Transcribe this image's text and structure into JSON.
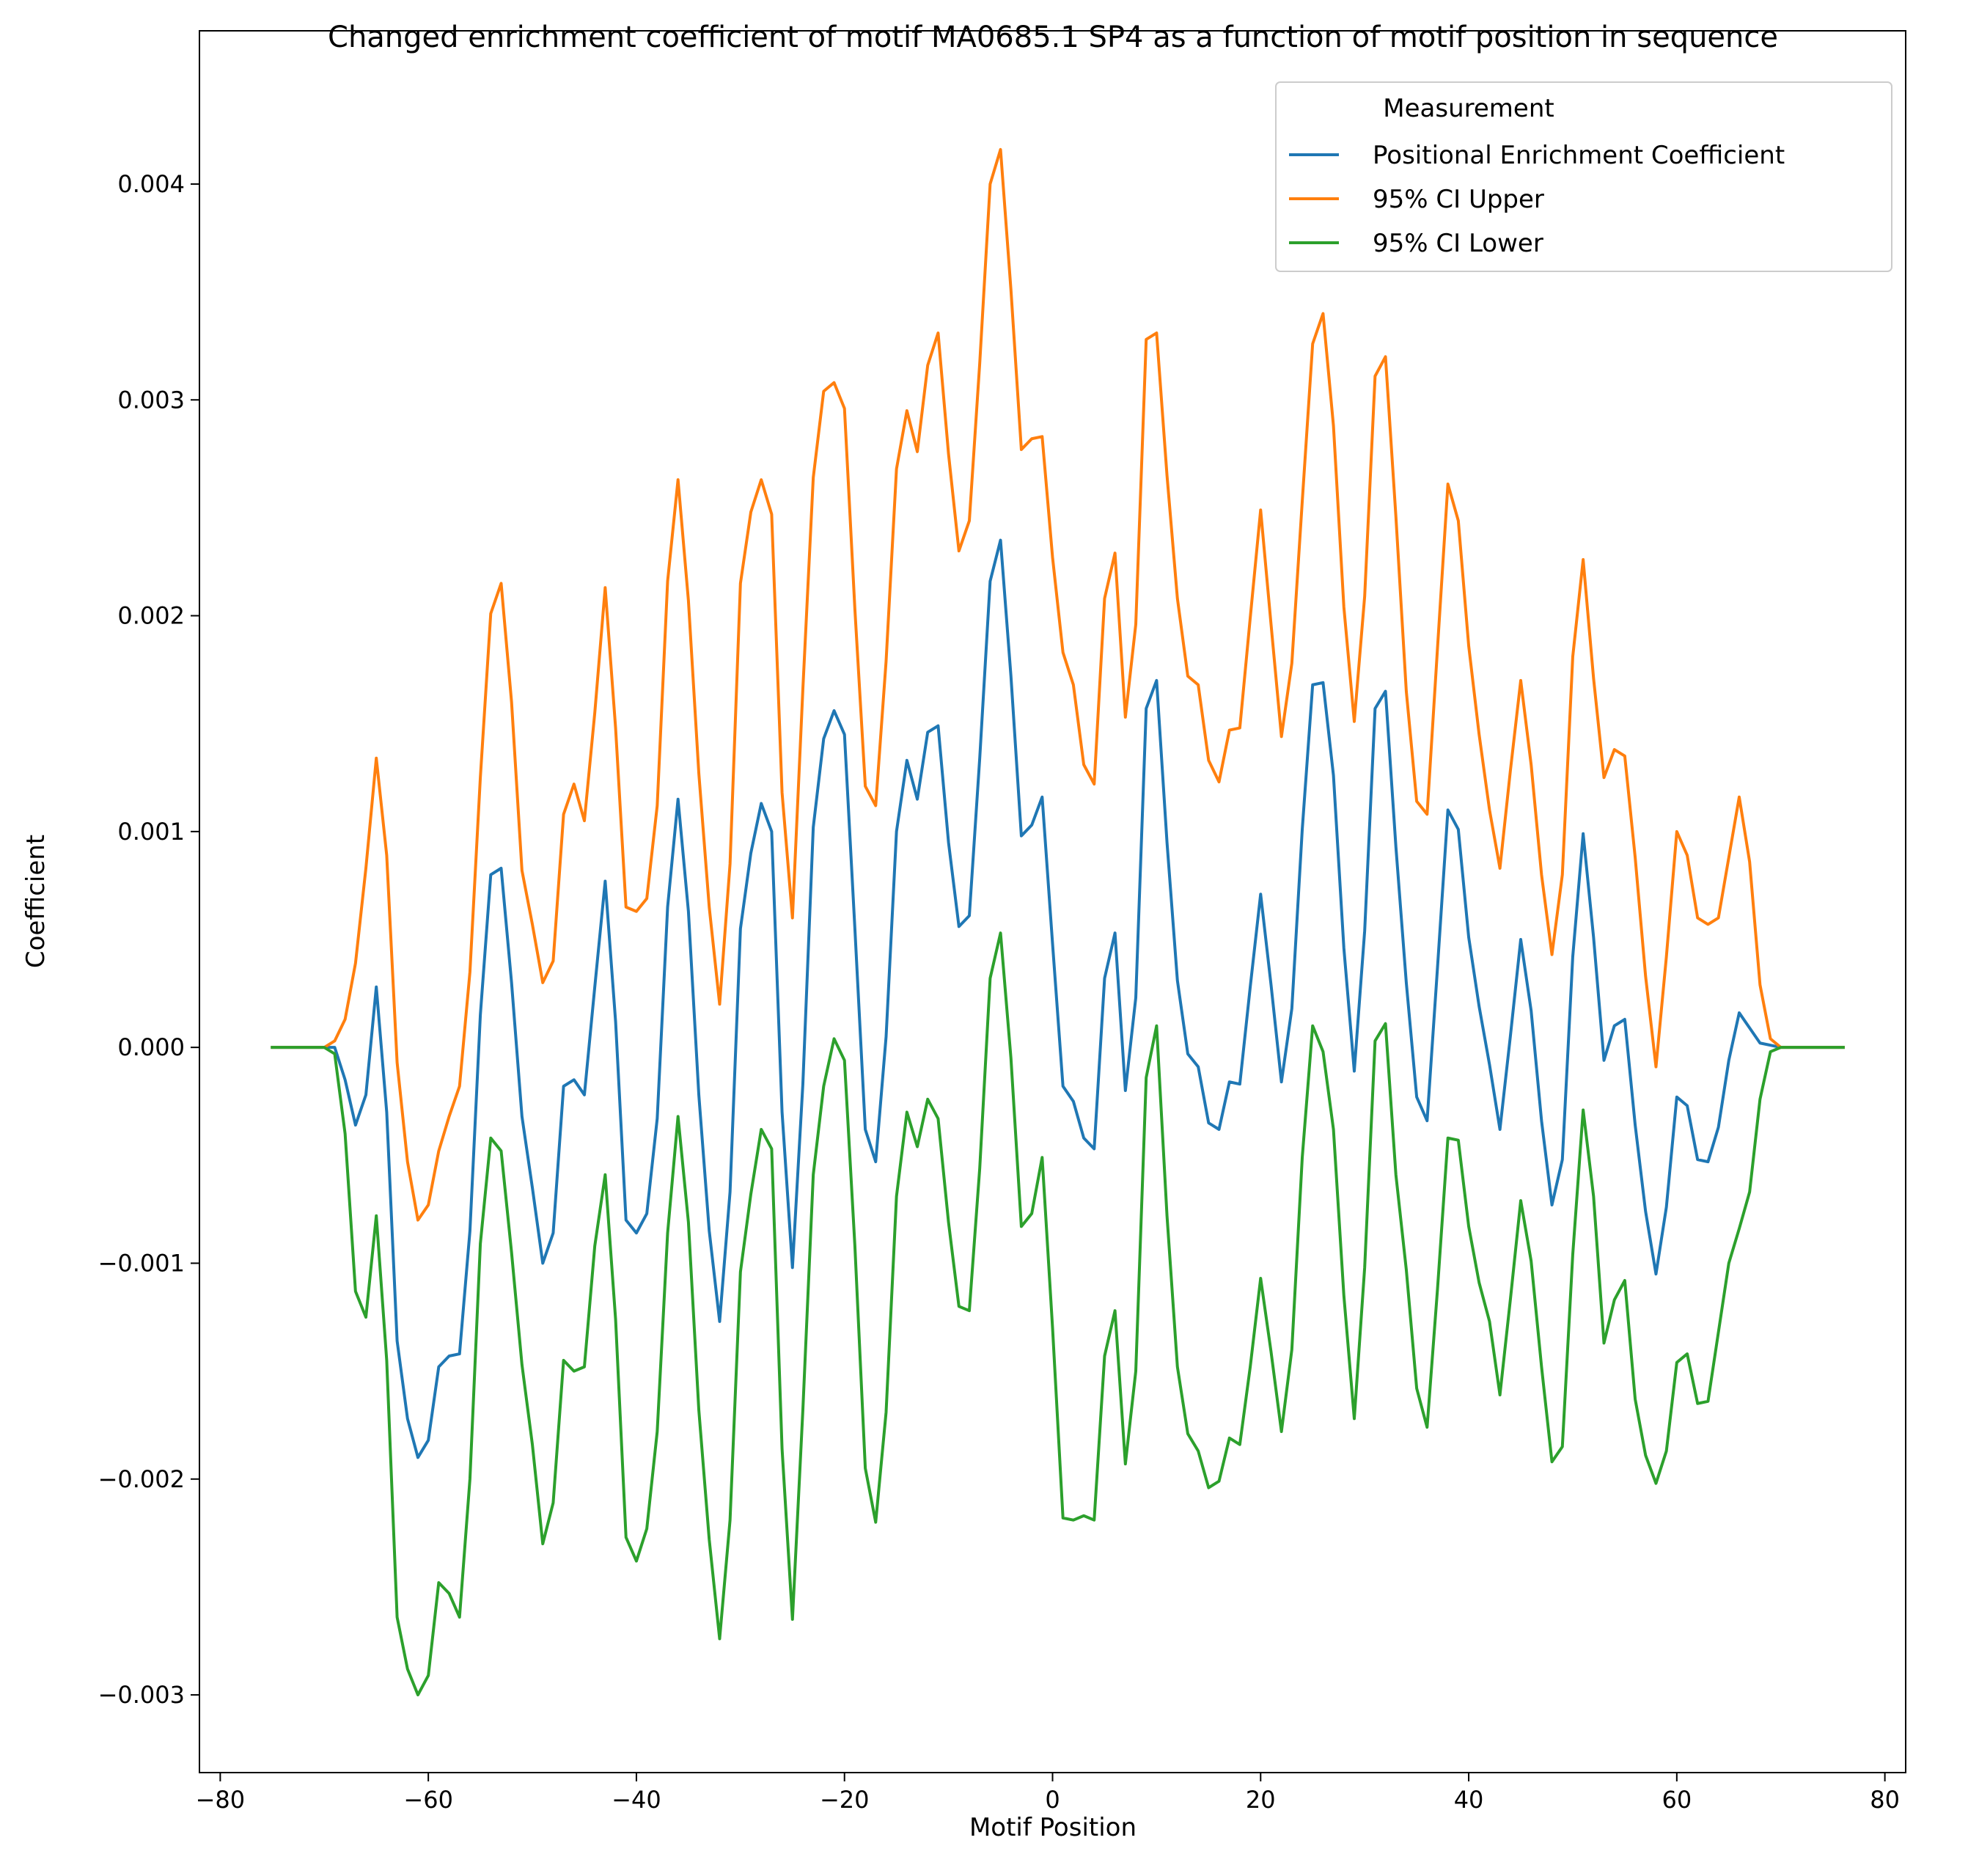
{
  "chart_data": {
    "type": "line",
    "title": "Changed enrichment coefficient of motif MA0685.1 SP4 as a function of motif position in sequence",
    "xlabel": "Motif Position",
    "ylabel": "Coefficient",
    "xlim": [
      -82,
      82
    ],
    "ylim": [
      -0.00336,
      0.00471
    ],
    "x_ticks": [
      -80,
      -60,
      -40,
      -20,
      0,
      20,
      40,
      60,
      80
    ],
    "x_tick_labels": [
      "−80",
      "−60",
      "−40",
      "−20",
      "0",
      "20",
      "40",
      "60",
      "80"
    ],
    "y_ticks": [
      -0.003,
      -0.002,
      -0.001,
      0,
      0.001,
      0.002,
      0.003,
      0.004
    ],
    "y_tick_labels": [
      "−0.003",
      "−0.002",
      "−0.001",
      "0.000",
      "0.001",
      "0.002",
      "0.003",
      "0.004"
    ],
    "grid": false,
    "legend": {
      "title": "Measurement",
      "position": "top-right"
    },
    "x_start": -75,
    "series": [
      {
        "name": "Positional Enrichment Coefficient",
        "color": "#1f77b4",
        "values": [
          0,
          0,
          0,
          0,
          0,
          0,
          0,
          -0.00015,
          -0.00036,
          -0.00022,
          0.00028,
          -0.0003,
          -0.00136,
          -0.00172,
          -0.0019,
          -0.00182,
          -0.00148,
          -0.00143,
          -0.00142,
          -0.00085,
          0.00015,
          0.0008,
          0.00083,
          0.0003,
          -0.00032,
          -0.00065,
          -0.001,
          -0.00086,
          -0.00018,
          -0.00015,
          -0.00022,
          0.00028,
          0.00077,
          0.00012,
          -0.0008,
          -0.00086,
          -0.00077,
          -0.00033,
          0.00065,
          0.00115,
          0.00063,
          -0.00022,
          -0.00085,
          -0.00127,
          -0.00067,
          0.00055,
          0.0009,
          0.00113,
          0.001,
          -0.0003,
          -0.00102,
          -0.00017,
          0.00102,
          0.00143,
          0.00156,
          0.00145,
          0.00055,
          -0.00038,
          -0.00053,
          5e-05,
          0.001,
          0.00133,
          0.00115,
          0.00146,
          0.00149,
          0.00095,
          0.00056,
          0.00061,
          0.00134,
          0.00216,
          0.00235,
          0.00172,
          0.00098,
          0.00103,
          0.00116,
          0.00048,
          -0.00018,
          -0.00025,
          -0.00042,
          -0.00047,
          0.00032,
          0.00053,
          -0.0002,
          0.00023,
          0.00157,
          0.0017,
          0.00095,
          0.00031,
          -3e-05,
          -9e-05,
          -0.00035,
          -0.00038,
          -0.00016,
          -0.00017,
          0.00028,
          0.00071,
          0.00029,
          -0.00016,
          0.00018,
          0.00101,
          0.00168,
          0.00169,
          0.00126,
          0.00046,
          -0.00011,
          0.00054,
          0.00157,
          0.00165,
          0.00093,
          0.0003,
          -0.00023,
          -0.00034,
          0.00037,
          0.0011,
          0.00101,
          0.00051,
          0.00019,
          -8e-05,
          -0.00038,
          5e-05,
          0.0005,
          0.00017,
          -0.00034,
          -0.00073,
          -0.00052,
          0.00042,
          0.00099,
          0.00051,
          -6e-05,
          0.0001,
          0.00013,
          -0.00036,
          -0.00076,
          -0.00105,
          -0.00074,
          -0.00023,
          -0.00027,
          -0.00052,
          -0.00053,
          -0.00037,
          -6e-05,
          0.00016,
          9e-05,
          2e-05,
          1e-05,
          0,
          0,
          0,
          0,
          0,
          0,
          0
        ]
      },
      {
        "name": "95% CI Upper",
        "color": "#ff7f0e",
        "values": [
          0,
          0,
          0,
          0,
          0,
          0,
          3e-05,
          0.00013,
          0.00039,
          0.00083,
          0.00134,
          0.00089,
          -7e-05,
          -0.00053,
          -0.0008,
          -0.00073,
          -0.00048,
          -0.00032,
          -0.00018,
          0.00035,
          0.00125,
          0.00201,
          0.00215,
          0.0016,
          0.00082,
          0.00057,
          0.0003,
          0.0004,
          0.00108,
          0.00122,
          0.00105,
          0.00155,
          0.00213,
          0.00148,
          0.00065,
          0.00063,
          0.00069,
          0.00112,
          0.00216,
          0.00263,
          0.00207,
          0.00127,
          0.00065,
          0.0002,
          0.00085,
          0.00215,
          0.00248,
          0.00263,
          0.00247,
          0.00118,
          0.0006,
          0.00166,
          0.00264,
          0.00304,
          0.00308,
          0.00296,
          0.00203,
          0.00121,
          0.00112,
          0.00179,
          0.00268,
          0.00295,
          0.00276,
          0.00316,
          0.00331,
          0.00275,
          0.0023,
          0.00244,
          0.00317,
          0.004,
          0.00416,
          0.00351,
          0.00277,
          0.00282,
          0.00283,
          0.00227,
          0.00183,
          0.00168,
          0.00131,
          0.00122,
          0.00208,
          0.00229,
          0.00153,
          0.00196,
          0.00328,
          0.00331,
          0.00265,
          0.00208,
          0.00172,
          0.00168,
          0.00133,
          0.00123,
          0.00147,
          0.00148,
          0.00199,
          0.00249,
          0.00196,
          0.00144,
          0.00178,
          0.00253,
          0.00326,
          0.0034,
          0.00288,
          0.00204,
          0.00151,
          0.00209,
          0.00311,
          0.0032,
          0.00246,
          0.00165,
          0.00114,
          0.00108,
          0.00185,
          0.00261,
          0.00244,
          0.00186,
          0.00145,
          0.0011,
          0.00083,
          0.00128,
          0.0017,
          0.00131,
          0.0008,
          0.00043,
          0.0008,
          0.00181,
          0.00226,
          0.00171,
          0.00125,
          0.00138,
          0.00135,
          0.00088,
          0.00033,
          -9e-05,
          0.00042,
          0.001,
          0.00089,
          0.0006,
          0.00057,
          0.0006,
          0.00088,
          0.00116,
          0.00086,
          0.00029,
          4e-05,
          0,
          0,
          0,
          0,
          0,
          0,
          0
        ]
      },
      {
        "name": "95% CI Lower",
        "color": "#2ca02c",
        "values": [
          0,
          0,
          0,
          0,
          0,
          0,
          -3e-05,
          -0.0004,
          -0.00113,
          -0.00125,
          -0.00078,
          -0.00145,
          -0.00264,
          -0.00288,
          -0.003,
          -0.00291,
          -0.00248,
          -0.00253,
          -0.00264,
          -0.002,
          -0.00091,
          -0.00042,
          -0.00048,
          -0.00095,
          -0.00147,
          -0.00184,
          -0.0023,
          -0.00211,
          -0.00145,
          -0.0015,
          -0.00148,
          -0.00092,
          -0.00059,
          -0.00126,
          -0.00227,
          -0.00238,
          -0.00223,
          -0.00178,
          -0.00086,
          -0.00032,
          -0.00081,
          -0.00168,
          -0.00228,
          -0.00274,
          -0.00219,
          -0.00104,
          -0.00068,
          -0.00038,
          -0.00047,
          -0.00186,
          -0.00265,
          -0.00168,
          -0.00059,
          -0.00018,
          4e-05,
          -6e-05,
          -0.00092,
          -0.00195,
          -0.0022,
          -0.00169,
          -0.00069,
          -0.0003,
          -0.00046,
          -0.00024,
          -0.00033,
          -0.00081,
          -0.0012,
          -0.00122,
          -0.00056,
          0.00032,
          0.00053,
          -5e-05,
          -0.00083,
          -0.00077,
          -0.00051,
          -0.0013,
          -0.00218,
          -0.00219,
          -0.00217,
          -0.00219,
          -0.00143,
          -0.00122,
          -0.00193,
          -0.0015,
          -0.00014,
          0.0001,
          -0.00078,
          -0.00148,
          -0.00179,
          -0.00187,
          -0.00204,
          -0.00201,
          -0.00181,
          -0.00184,
          -0.00148,
          -0.00107,
          -0.00141,
          -0.00178,
          -0.0014,
          -0.00051,
          0.0001,
          -2e-05,
          -0.00038,
          -0.00115,
          -0.00172,
          -0.00102,
          3e-05,
          0.00011,
          -0.00059,
          -0.00103,
          -0.00158,
          -0.00176,
          -0.00112,
          -0.00042,
          -0.00043,
          -0.00083,
          -0.00109,
          -0.00127,
          -0.00161,
          -0.00117,
          -0.00071,
          -0.00099,
          -0.00148,
          -0.00192,
          -0.00185,
          -0.00096,
          -0.00029,
          -0.00069,
          -0.00137,
          -0.00117,
          -0.00108,
          -0.00163,
          -0.00189,
          -0.00202,
          -0.00187,
          -0.00146,
          -0.00142,
          -0.00165,
          -0.00164,
          -0.00132,
          -0.001,
          -0.00084,
          -0.00067,
          -0.00024,
          -2e-05,
          0,
          0,
          0,
          0,
          0,
          0,
          0
        ]
      }
    ]
  }
}
